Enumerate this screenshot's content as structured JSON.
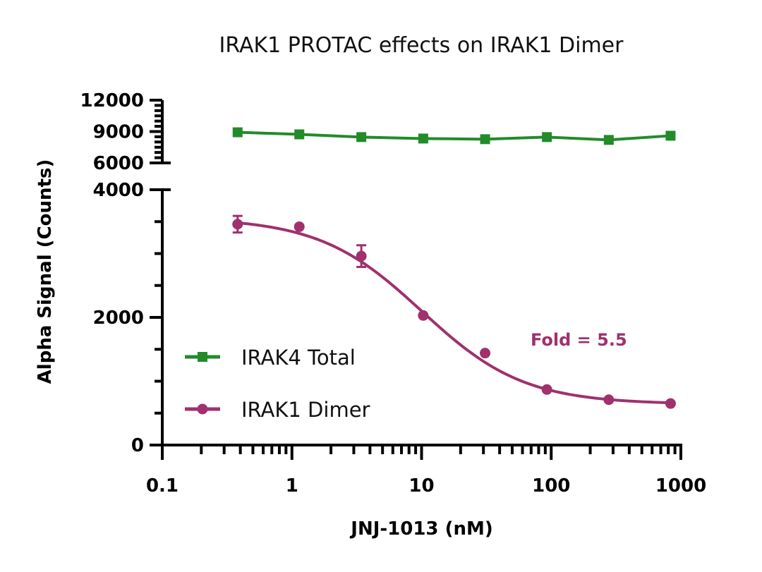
{
  "chart_data": {
    "type": "scatter",
    "title": "IRAK1 PROTAC effects on IRAK1 Dimer",
    "xlabel": "JNJ-1013 (nM)",
    "ylabel": "Alpha Signal (Counts)",
    "xscale": "log",
    "xlim": [
      0.1,
      1000
    ],
    "xticks": [
      "0.1",
      "1",
      "10",
      "100",
      "1000"
    ],
    "y_axis_broken": true,
    "ylim_lower": [
      0,
      4000
    ],
    "yticks_lower": [
      "0",
      "2000",
      "4000"
    ],
    "ylim_upper": [
      6000,
      12000
    ],
    "yticks_upper": [
      "6000",
      "9000",
      "12000"
    ],
    "grid": false,
    "legend_position": "lower-left",
    "x": [
      0.381,
      1.14,
      3.43,
      10.3,
      30.9,
      92.6,
      278,
      833
    ],
    "series": [
      {
        "name": "IRAK4 Total",
        "color": "#228B2A",
        "marker": "square",
        "values": [
          8930,
          8730,
          8470,
          8330,
          8270,
          8470,
          8200,
          8600
        ]
      },
      {
        "name": "IRAK1 Dimer",
        "color": "#A0306E",
        "marker": "circle",
        "fit": "sigmoidal curve",
        "values": [
          3460,
          3420,
          2960,
          2030,
          1440,
          870,
          710,
          650
        ],
        "errors": [
          130,
          40,
          170,
          30,
          30,
          30,
          30,
          30
        ]
      }
    ],
    "annotation": {
      "text": "Fold = 5.5",
      "color": "#A0306E"
    }
  }
}
